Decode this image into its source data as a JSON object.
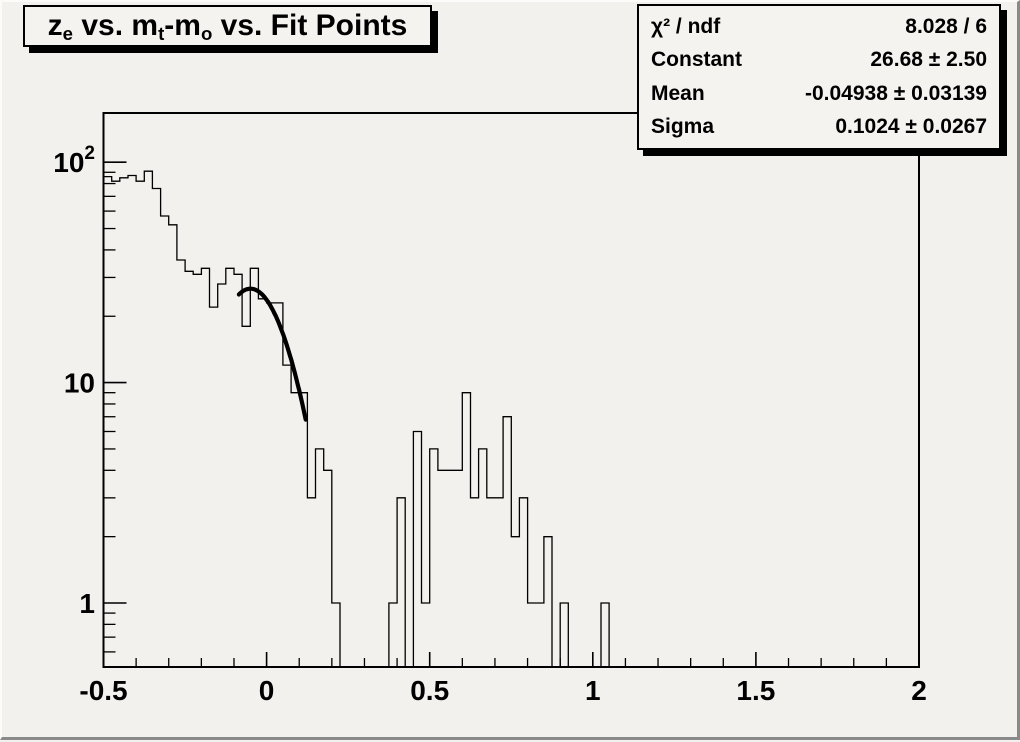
{
  "title": {
    "text": "ze vs. mt-mo vs. Fit Points",
    "parts": [
      {
        "text": "z"
      },
      {
        "text": "e",
        "sub": true
      },
      {
        "text": " vs. m"
      },
      {
        "text": "t",
        "sub": true
      },
      {
        "text": "-m"
      },
      {
        "text": "o",
        "sub": true
      },
      {
        "text": " vs. Fit Points"
      }
    ]
  },
  "stats": {
    "rows": [
      {
        "label": "χ² / ndf",
        "value": "8.028 / 6"
      },
      {
        "label": "Constant",
        "value": "26.68 ± 2.50"
      },
      {
        "label": "Mean",
        "value": "-0.04938 ± 0.03139"
      },
      {
        "label": "Sigma",
        "value": "0.1024 ± 0.0267"
      }
    ]
  },
  "colors": {
    "background": "#f2f1ee",
    "line": "#000000",
    "pave_background": "#f4f3f0",
    "pave_shadow": "#000000"
  },
  "chart_data": {
    "type": "bar",
    "subtype": "step-histogram-log-y",
    "title": "ze vs. mt-mo vs. Fit Points",
    "x_axis": {
      "scale": "linear",
      "min": -0.5,
      "max": 2.0,
      "major_ticks": [
        -0.5,
        0,
        0.5,
        1,
        1.5,
        2
      ],
      "major_labels": [
        "-0.5",
        "0",
        "0.5",
        "1",
        "1.5",
        "2"
      ],
      "minor_tick_step": 0.1
    },
    "y_axis": {
      "scale": "log",
      "min": 0.51,
      "max": 168,
      "major_ticks": [
        {
          "value": 1,
          "label": "1"
        },
        {
          "value": 10,
          "label": "10"
        },
        {
          "value": 100,
          "label": "10",
          "exponent": "2"
        }
      ]
    },
    "bins": {
      "start": -0.5,
      "width": 0.025,
      "counts": [
        86,
        82,
        85,
        87,
        82,
        91,
        76,
        57,
        52,
        36,
        32,
        31,
        33,
        22,
        28,
        33,
        31,
        18,
        33,
        24,
        23,
        23,
        12,
        9,
        9,
        3,
        5,
        4,
        1,
        0,
        0,
        0,
        0,
        0,
        0,
        1,
        3,
        0,
        6,
        1,
        5,
        4,
        4,
        4,
        9,
        3,
        5,
        3,
        3,
        7,
        2,
        3,
        1,
        1,
        2,
        0,
        1,
        0,
        0,
        0,
        0,
        1,
        0,
        0,
        0,
        0,
        0,
        0,
        0,
        0,
        0,
        0,
        0,
        0,
        0,
        0,
        0,
        0,
        0,
        0,
        0,
        0,
        0,
        0,
        0,
        0,
        0,
        0,
        0,
        0,
        0,
        0,
        0,
        0,
        0,
        0,
        0,
        0,
        0,
        0
      ]
    },
    "fit": {
      "type": "gaussian",
      "constant": 26.68,
      "mean": -0.04938,
      "sigma": 0.1024,
      "range": [
        -0.085,
        0.12
      ],
      "chi2": 8.028,
      "ndf": 6,
      "constant_error": 2.5,
      "mean_error": 0.03139,
      "sigma_error": 0.0267
    },
    "legend": null,
    "grid": false
  }
}
